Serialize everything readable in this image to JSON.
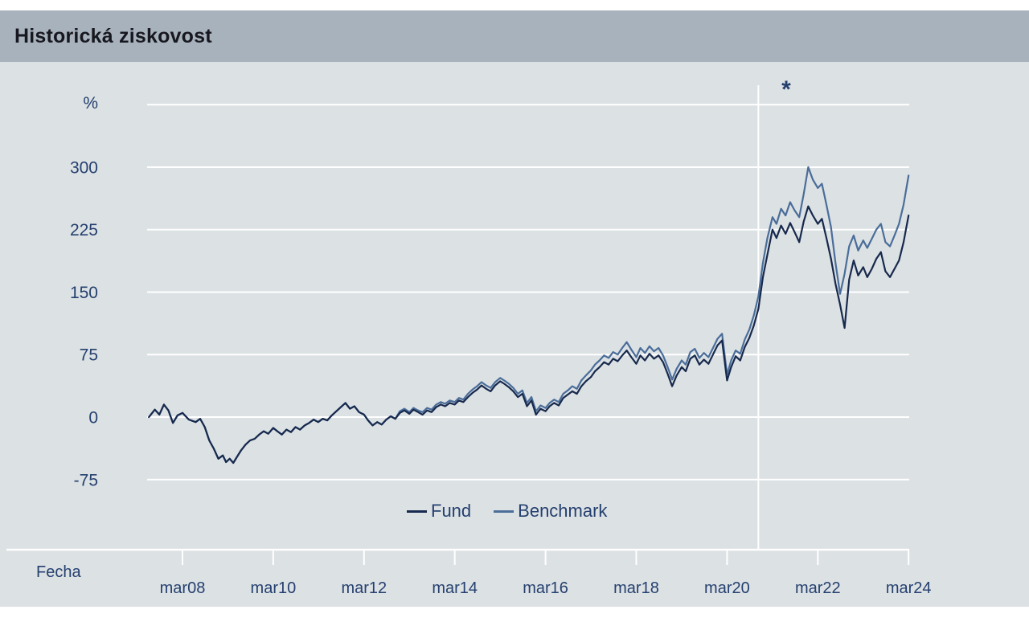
{
  "header": {
    "title": "Historická ziskovost"
  },
  "colors": {
    "header_bg": "#a8b2bc",
    "chart_bg": "#dce1e4",
    "grid": "#ffffff",
    "text_navy": "#25406f",
    "title": "#17171f",
    "fund_line": "#17294d",
    "benchmark_line": "#4a6d99"
  },
  "annotation": {
    "marker_star": "*"
  },
  "chart_data": {
    "type": "line",
    "title": "Historická ziskovost",
    "ylabel": "%",
    "xlabel": "Fecha",
    "ylim": [
      -75,
      375
    ],
    "grid": true,
    "legend_position": "bottom-center",
    "grid_values": [
      375,
      300,
      225,
      150,
      75,
      0,
      -75
    ],
    "y_ticks": [
      {
        "label": "300",
        "value": 300
      },
      {
        "label": "225",
        "value": 225
      },
      {
        "label": "150",
        "value": 150
      },
      {
        "label": "75",
        "value": 75
      },
      {
        "label": "0",
        "value": 0
      },
      {
        "label": "-75",
        "value": -75
      }
    ],
    "x_ticks": [
      {
        "label": "mar08",
        "year": 2008.21
      },
      {
        "label": "mar10",
        "year": 2010.21
      },
      {
        "label": "mar12",
        "year": 2012.21
      },
      {
        "label": "mar14",
        "year": 2014.21
      },
      {
        "label": "mar16",
        "year": 2016.21
      },
      {
        "label": "mar18",
        "year": 2018.21
      },
      {
        "label": "mar20",
        "year": 2020.21
      },
      {
        "label": "mar22",
        "year": 2022.21
      },
      {
        "label": "mar24",
        "year": 2024.21
      }
    ],
    "marker_line_year": 2020.9,
    "x": [
      2007.47,
      2007.6,
      2007.7,
      2007.8,
      2007.9,
      2008.0,
      2008.1,
      2008.21,
      2008.35,
      2008.5,
      2008.6,
      2008.7,
      2008.8,
      2008.9,
      2009.0,
      2009.1,
      2009.17,
      2009.25,
      2009.33,
      2009.42,
      2009.5,
      2009.6,
      2009.7,
      2009.8,
      2009.9,
      2010.0,
      2010.1,
      2010.21,
      2010.3,
      2010.4,
      2010.5,
      2010.6,
      2010.7,
      2010.8,
      2010.9,
      2011.0,
      2011.1,
      2011.2,
      2011.3,
      2011.4,
      2011.5,
      2011.6,
      2011.7,
      2011.8,
      2011.9,
      2012.0,
      2012.1,
      2012.21,
      2012.3,
      2012.4,
      2012.5,
      2012.6,
      2012.7,
      2012.8,
      2012.9,
      2013.0,
      2013.1,
      2013.21,
      2013.3,
      2013.4,
      2013.5,
      2013.6,
      2013.7,
      2013.8,
      2013.9,
      2014.0,
      2014.1,
      2014.21,
      2014.3,
      2014.4,
      2014.5,
      2014.6,
      2014.7,
      2014.8,
      2014.9,
      2015.0,
      2015.1,
      2015.21,
      2015.3,
      2015.4,
      2015.5,
      2015.6,
      2015.7,
      2015.8,
      2015.9,
      2016.0,
      2016.1,
      2016.21,
      2016.3,
      2016.4,
      2016.5,
      2016.6,
      2016.7,
      2016.8,
      2016.9,
      2017.0,
      2017.1,
      2017.21,
      2017.3,
      2017.4,
      2017.5,
      2017.6,
      2017.7,
      2017.8,
      2017.9,
      2018.0,
      2018.1,
      2018.21,
      2018.3,
      2018.4,
      2018.5,
      2018.6,
      2018.7,
      2018.8,
      2018.9,
      2019.0,
      2019.1,
      2019.21,
      2019.3,
      2019.4,
      2019.5,
      2019.6,
      2019.7,
      2019.8,
      2019.9,
      2020.0,
      2020.1,
      2020.21,
      2020.3,
      2020.4,
      2020.5,
      2020.6,
      2020.7,
      2020.8,
      2020.9,
      2021.0,
      2021.1,
      2021.21,
      2021.3,
      2021.4,
      2021.5,
      2021.6,
      2021.7,
      2021.8,
      2021.9,
      2022.0,
      2022.1,
      2022.21,
      2022.3,
      2022.4,
      2022.5,
      2022.6,
      2022.7,
      2022.8,
      2022.9,
      2023.0,
      2023.1,
      2023.21,
      2023.3,
      2023.4,
      2023.5,
      2023.6,
      2023.7,
      2023.8,
      2023.9,
      2024.0,
      2024.1,
      2024.21
    ],
    "series": [
      {
        "name": "Fund",
        "color": "#17294d",
        "values": [
          0,
          9,
          3,
          15,
          8,
          -7,
          2,
          5,
          -3,
          -6,
          -2,
          -12,
          -28,
          -38,
          -50,
          -46,
          -54,
          -50,
          -55,
          -47,
          -40,
          -33,
          -28,
          -26,
          -21,
          -17,
          -20,
          -13,
          -17,
          -21,
          -15,
          -18,
          -12,
          -15,
          -10,
          -7,
          -3,
          -6,
          -2,
          -4,
          2,
          7,
          12,
          17,
          10,
          13,
          6,
          3,
          -4,
          -10,
          -6,
          -9,
          -3,
          1,
          -2,
          5,
          8,
          4,
          9,
          6,
          3,
          8,
          6,
          12,
          15,
          13,
          17,
          15,
          20,
          18,
          24,
          29,
          33,
          38,
          34,
          31,
          38,
          43,
          40,
          36,
          31,
          24,
          28,
          13,
          20,
          3,
          10,
          7,
          13,
          17,
          14,
          23,
          27,
          31,
          28,
          37,
          43,
          48,
          55,
          60,
          66,
          63,
          70,
          67,
          74,
          80,
          72,
          64,
          74,
          68,
          76,
          70,
          74,
          66,
          52,
          37,
          50,
          60,
          55,
          70,
          74,
          63,
          69,
          64,
          75,
          86,
          92,
          44,
          60,
          73,
          68,
          84,
          95,
          110,
          130,
          168,
          195,
          225,
          215,
          230,
          220,
          233,
          222,
          210,
          235,
          253,
          242,
          232,
          238,
          215,
          190,
          160,
          135,
          107,
          165,
          188,
          170,
          180,
          168,
          178,
          190,
          198,
          175,
          168,
          178,
          188,
          210,
          242
        ]
      },
      {
        "name": "Benchmark",
        "color": "#4a6d99",
        "values": [
          0,
          9,
          3,
          15,
          8,
          -7,
          2,
          5,
          -3,
          -6,
          -2,
          -12,
          -28,
          -38,
          -50,
          -46,
          -54,
          -50,
          -55,
          -47,
          -40,
          -33,
          -28,
          -26,
          -21,
          -17,
          -20,
          -13,
          -17,
          -21,
          -15,
          -18,
          -12,
          -15,
          -10,
          -7,
          -3,
          -6,
          -2,
          -4,
          2,
          7,
          12,
          17,
          10,
          13,
          6,
          3,
          -4,
          -10,
          -6,
          -9,
          -3,
          1,
          -2,
          7,
          10,
          6,
          11,
          8,
          6,
          11,
          9,
          15,
          18,
          16,
          20,
          18,
          23,
          21,
          28,
          33,
          37,
          42,
          38,
          35,
          42,
          47,
          44,
          40,
          35,
          28,
          32,
          17,
          24,
          7,
          14,
          11,
          17,
          21,
          18,
          28,
          32,
          37,
          34,
          44,
          50,
          56,
          63,
          68,
          74,
          71,
          78,
          75,
          83,
          90,
          81,
          72,
          83,
          77,
          85,
          79,
          83,
          74,
          60,
          45,
          58,
          68,
          63,
          78,
          82,
          71,
          77,
          72,
          83,
          94,
          100,
          51,
          68,
          80,
          76,
          93,
          105,
          122,
          145,
          185,
          215,
          240,
          232,
          250,
          242,
          258,
          248,
          240,
          268,
          300,
          285,
          275,
          280,
          255,
          228,
          185,
          148,
          172,
          205,
          218,
          200,
          212,
          203,
          214,
          225,
          232,
          210,
          205,
          218,
          232,
          255,
          290
        ]
      }
    ]
  }
}
